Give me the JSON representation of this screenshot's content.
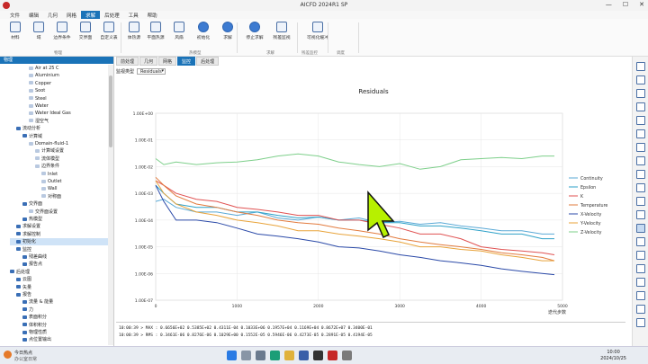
{
  "window": {
    "title": "AICFD 2024R1 SP"
  },
  "menu": [
    "文件",
    "编辑",
    "几何",
    "网格",
    "求解",
    "后处理",
    "工具",
    "帮助"
  ],
  "menu_active": 4,
  "ribbon": {
    "buttons": [
      "材料",
      "域",
      "边界条件",
      "交界面",
      "自定义表",
      "体热源",
      "平面热源",
      "风扇",
      "初始化",
      "求解",
      "停止求解",
      "残差监视",
      "可视化缓冲"
    ],
    "groups": [
      "物理",
      "热模型",
      "求解",
      "残差监控",
      "调度"
    ]
  },
  "left_panel": {
    "header": "物理",
    "tree": [
      {
        "label": "Air at 25 C",
        "level": 3
      },
      {
        "label": "Aluminium",
        "level": 3
      },
      {
        "label": "Copper",
        "level": 3
      },
      {
        "label": "Soot",
        "level": 3
      },
      {
        "label": "Steel",
        "level": 3
      },
      {
        "label": "Water",
        "level": 3
      },
      {
        "label": "Water Ideal Gas",
        "level": 3
      },
      {
        "label": "湿空气",
        "level": 3
      },
      {
        "label": "流动分析",
        "level": 1
      },
      {
        "label": "计算域",
        "level": 2
      },
      {
        "label": "Domain-fluid-1",
        "level": 3
      },
      {
        "label": "计算域设置",
        "level": 4
      },
      {
        "label": "流体模型",
        "level": 4
      },
      {
        "label": "边界条件",
        "level": 4
      },
      {
        "label": "Inlet",
        "level": 5
      },
      {
        "label": "Outlet",
        "level": 5
      },
      {
        "label": "Wall",
        "level": 5
      },
      {
        "label": "对称面",
        "level": 5
      },
      {
        "label": "交界面",
        "level": 2
      },
      {
        "label": "交界面设置",
        "level": 3
      },
      {
        "label": "热模型",
        "level": 2
      },
      {
        "label": "求解设置",
        "level": 1
      },
      {
        "label": "求解控制",
        "level": 1
      },
      {
        "label": "初始化",
        "level": 1
      },
      {
        "label": "监控",
        "level": 1
      },
      {
        "label": "残差曲线",
        "level": 2
      },
      {
        "label": "报告点",
        "level": 2
      },
      {
        "label": "后处理",
        "level": 0
      },
      {
        "label": "云图",
        "level": 1
      },
      {
        "label": "矢量",
        "level": 1
      },
      {
        "label": "报告",
        "level": 1
      },
      {
        "label": "流量 & 能量",
        "level": 2
      },
      {
        "label": "力",
        "level": 2
      },
      {
        "label": "表面积分",
        "level": 2
      },
      {
        "label": "体积积分",
        "level": 2
      },
      {
        "label": "物理性质",
        "level": 2
      },
      {
        "label": "点位置输出",
        "level": 2
      }
    ],
    "selected_index": 23
  },
  "tabs": [
    "前处理",
    "几何",
    "网格",
    "监控",
    "后处理"
  ],
  "tab_active": 3,
  "monitor": {
    "type_label": "监视类型",
    "type_value": "Residuals"
  },
  "chart_data": {
    "type": "line",
    "title": "Residuals",
    "xlabel": "迭代步数",
    "ylabel": "",
    "y_scale": "log",
    "xlim": [
      0,
      5000
    ],
    "ylim": [
      1e-07,
      1
    ],
    "x_ticks": [
      0,
      1000,
      2000,
      3000,
      4000,
      5000
    ],
    "y_ticks": [
      "1.00E+00",
      "1.00E-01",
      "1.00E-02",
      "1.00E-03",
      "1.00E-04",
      "1.00E-05",
      "1.00E-06",
      "1.00E-07"
    ],
    "grid": true,
    "legend_position": "right",
    "series": [
      {
        "name": "Continuity",
        "color": "#5aa9d6",
        "x": [
          0,
          100,
          250,
          500,
          750,
          1000,
          1250,
          1500,
          1750,
          2000,
          2250,
          2500,
          2750,
          3000,
          3250,
          3500,
          3750,
          4000,
          4250,
          4500,
          4750,
          4900
        ],
        "y": [
          0.0005,
          0.0006,
          0.0003,
          0.0002,
          0.0002,
          0.00015,
          0.0002,
          0.00012,
          0.0001,
          0.00013,
          0.0001,
          0.00012,
          8e-05,
          9e-05,
          7e-05,
          8e-05,
          6e-05,
          5e-05,
          4e-05,
          4e-05,
          3e-05,
          3e-05
        ]
      },
      {
        "name": "Epsilon",
        "color": "#2ea1c8",
        "x": [
          0,
          100,
          250,
          500,
          750,
          1000,
          1250,
          1500,
          1750,
          2000,
          2250,
          2500,
          2750,
          3000,
          3250,
          3500,
          3750,
          4000,
          4250,
          4500,
          4750,
          4900
        ],
        "y": [
          0.002,
          0.001,
          0.0004,
          0.0003,
          0.0003,
          0.0002,
          0.0002,
          0.00015,
          0.00012,
          0.00013,
          0.0001,
          0.0001,
          8e-05,
          8e-05,
          6e-05,
          6e-05,
          5e-05,
          4e-05,
          3e-05,
          3e-05,
          2e-05,
          2e-05
        ]
      },
      {
        "name": "K",
        "color": "#e05252",
        "x": [
          0,
          100,
          250,
          500,
          750,
          1000,
          1250,
          1500,
          1750,
          2000,
          2250,
          2500,
          2750,
          3000,
          3250,
          3500,
          3750,
          4000,
          4250,
          4500,
          4750,
          4900
        ],
        "y": [
          0.003,
          0.002,
          0.001,
          0.0006,
          0.0005,
          0.0003,
          0.00025,
          0.0002,
          0.00015,
          0.00015,
          0.0001,
          0.0001,
          7e-05,
          5e-05,
          3e-05,
          3e-05,
          2e-05,
          1e-05,
          8e-06,
          7e-06,
          6e-06,
          5e-06
        ]
      },
      {
        "name": "Temperature",
        "color": "#e27b3e",
        "x": [
          0,
          100,
          250,
          500,
          750,
          1000,
          1250,
          1500,
          1750,
          2000,
          2250,
          2500,
          2750,
          3000,
          3250,
          3500,
          3750,
          4000,
          4250,
          4500,
          4750,
          4900
        ],
        "y": [
          0.004,
          0.002,
          0.0008,
          0.0004,
          0.0003,
          0.0002,
          0.00015,
          0.0001,
          8e-05,
          7e-05,
          5e-05,
          4e-05,
          3e-05,
          2e-05,
          1.5e-05,
          1.2e-05,
          1e-05,
          8e-06,
          6e-06,
          5e-06,
          4e-06,
          3e-06
        ]
      },
      {
        "name": "X-Velocity",
        "color": "#2b4aa8",
        "x": [
          0,
          100,
          250,
          500,
          750,
          1000,
          1250,
          1500,
          1750,
          2000,
          2250,
          2500,
          2750,
          3000,
          3250,
          3500,
          3750,
          4000,
          4250,
          4500,
          4750,
          4900
        ],
        "y": [
          0.002,
          0.0005,
          0.0001,
          0.0001,
          8e-05,
          5e-05,
          3e-05,
          2.5e-05,
          2e-05,
          1.5e-05,
          1e-05,
          9e-06,
          7e-06,
          5e-06,
          4e-06,
          3e-06,
          2.5e-06,
          2e-06,
          1.5e-06,
          1.2e-06,
          1e-06,
          9e-07
        ]
      },
      {
        "name": "Y-Velocity",
        "color": "#e8a33a",
        "x": [
          0,
          100,
          250,
          500,
          750,
          1000,
          1250,
          1500,
          1750,
          2000,
          2250,
          2500,
          2750,
          3000,
          3250,
          3500,
          3750,
          4000,
          4250,
          4500,
          4750,
          4900
        ],
        "y": [
          0.003,
          0.001,
          0.0004,
          0.0002,
          0.00015,
          0.0001,
          8e-05,
          6e-05,
          4e-05,
          4e-05,
          3e-05,
          2.5e-05,
          2e-05,
          1.5e-05,
          1e-05,
          1e-05,
          8e-06,
          7e-06,
          5e-06,
          4e-06,
          3e-06,
          3e-06
        ]
      },
      {
        "name": "Z-Velocity",
        "color": "#7dcf8a",
        "x": [
          0,
          100,
          250,
          500,
          750,
          1000,
          1250,
          1500,
          1750,
          2000,
          2250,
          2500,
          2750,
          3000,
          3250,
          3500,
          3750,
          4000,
          4250,
          4500,
          4750,
          4900
        ],
        "y": [
          0.02,
          0.012,
          0.015,
          0.012,
          0.014,
          0.015,
          0.018,
          0.025,
          0.03,
          0.025,
          0.015,
          0.012,
          0.01,
          0.013,
          0.008,
          0.01,
          0.018,
          0.02,
          0.022,
          0.02,
          0.025,
          0.025
        ]
      }
    ]
  },
  "console": {
    "lines": [
      "10:00:39 >  MAX :    0.6656E+02    0.5385E+02    0.4311E-04    0.1033E+06    0.1957E+04    0.1169E+04    0.8672E+07    0.3400E-01",
      "10:00:39 >  RMS :    0.3461E-06    0.8276E-06    0.1029E+00    0.1552E-05    0.5946E-06    0.4273E-05    0.2891E-05    0.4194E-05"
    ]
  },
  "taskbar": {
    "weather_temp": "今日热点",
    "weather_desc": "办公室日常",
    "time": "10:00",
    "date": "2024/10/25"
  }
}
